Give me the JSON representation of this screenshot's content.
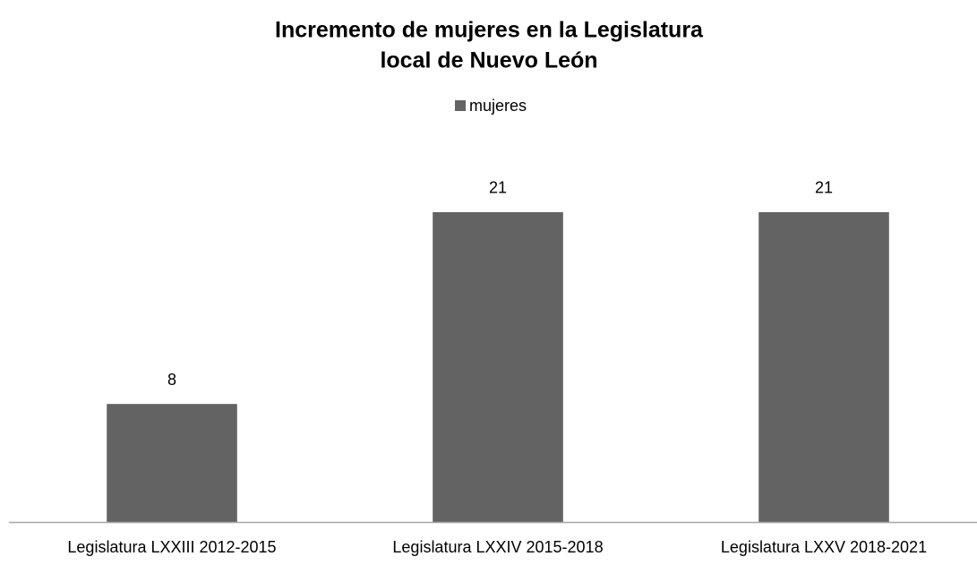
{
  "chart_data": {
    "type": "bar",
    "title": [
      "Incremento de mujeres en la Legislatura",
      "local de Nuevo León"
    ],
    "categories": [
      "Legislatura LXXIII 2012-2015",
      "Legislatura LXXIV 2015-2018",
      "Legislatura LXXV 2018-2021"
    ],
    "series": [
      {
        "name": "mujeres",
        "color": "#636363",
        "values": [
          8,
          21,
          21
        ]
      }
    ],
    "ylim": [
      0,
      25
    ],
    "legend": "top",
    "data_labels": true
  }
}
